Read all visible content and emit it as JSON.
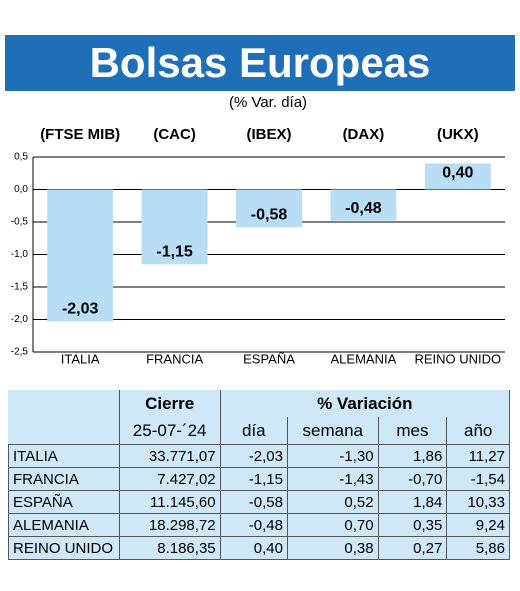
{
  "title": "Bolsas Europeas",
  "chart_data": {
    "type": "bar",
    "subtitle": "(% Var. día)",
    "indices": [
      "(FTSE MIB)",
      "(CAC)",
      "(IBEX)",
      "(DAX)",
      "(UKX)"
    ],
    "categories": [
      "ITALIA",
      "FRANCIA",
      "ESPAÑA",
      "ALEMANIA",
      "REINO UNIDO"
    ],
    "values": [
      -2.03,
      -1.15,
      -0.58,
      -0.48,
      0.4
    ],
    "value_labels": [
      "-2,03",
      "-1,15",
      "-0,58",
      "-0,48",
      "0,40"
    ],
    "color": "#b7def5",
    "ylim": [
      -2.5,
      0.5
    ],
    "yticks": [
      {
        "value": 0.5,
        "label": "0,5"
      },
      {
        "value": 0,
        "label": "0,0"
      },
      {
        "value": -0.5,
        "label": "-0,5"
      },
      {
        "value": -1,
        "label": "-1,0"
      },
      {
        "value": -1.5,
        "label": "-1,5"
      },
      {
        "value": -2,
        "label": "-2,0"
      },
      {
        "value": -2.5,
        "label": "-2,5"
      }
    ],
    "grid": true
  },
  "table": {
    "header": [
      "Cierre",
      "% Variación"
    ],
    "subheader": [
      "25-07-´24",
      "día",
      "semana",
      "mes",
      "año"
    ],
    "rows": [
      [
        "ITALIA",
        "33.771,07",
        "-2,03",
        "-1,30",
        "1,86",
        "11,27"
      ],
      [
        "FRANCIA",
        "7.427,02",
        "-1,15",
        "-1,43",
        "-0,70",
        "-1,54"
      ],
      [
        "ESPAÑA",
        "11.145,60",
        "-0,58",
        "0,52",
        "1,84",
        "10,33"
      ],
      [
        "ALEMANIA",
        "18.298,72",
        "-0,48",
        "0,70",
        "0,35",
        "9,24"
      ],
      [
        "REINO UNIDO",
        "8.186,35",
        "0,40",
        "0,38",
        "0,27",
        "5,86"
      ]
    ]
  }
}
